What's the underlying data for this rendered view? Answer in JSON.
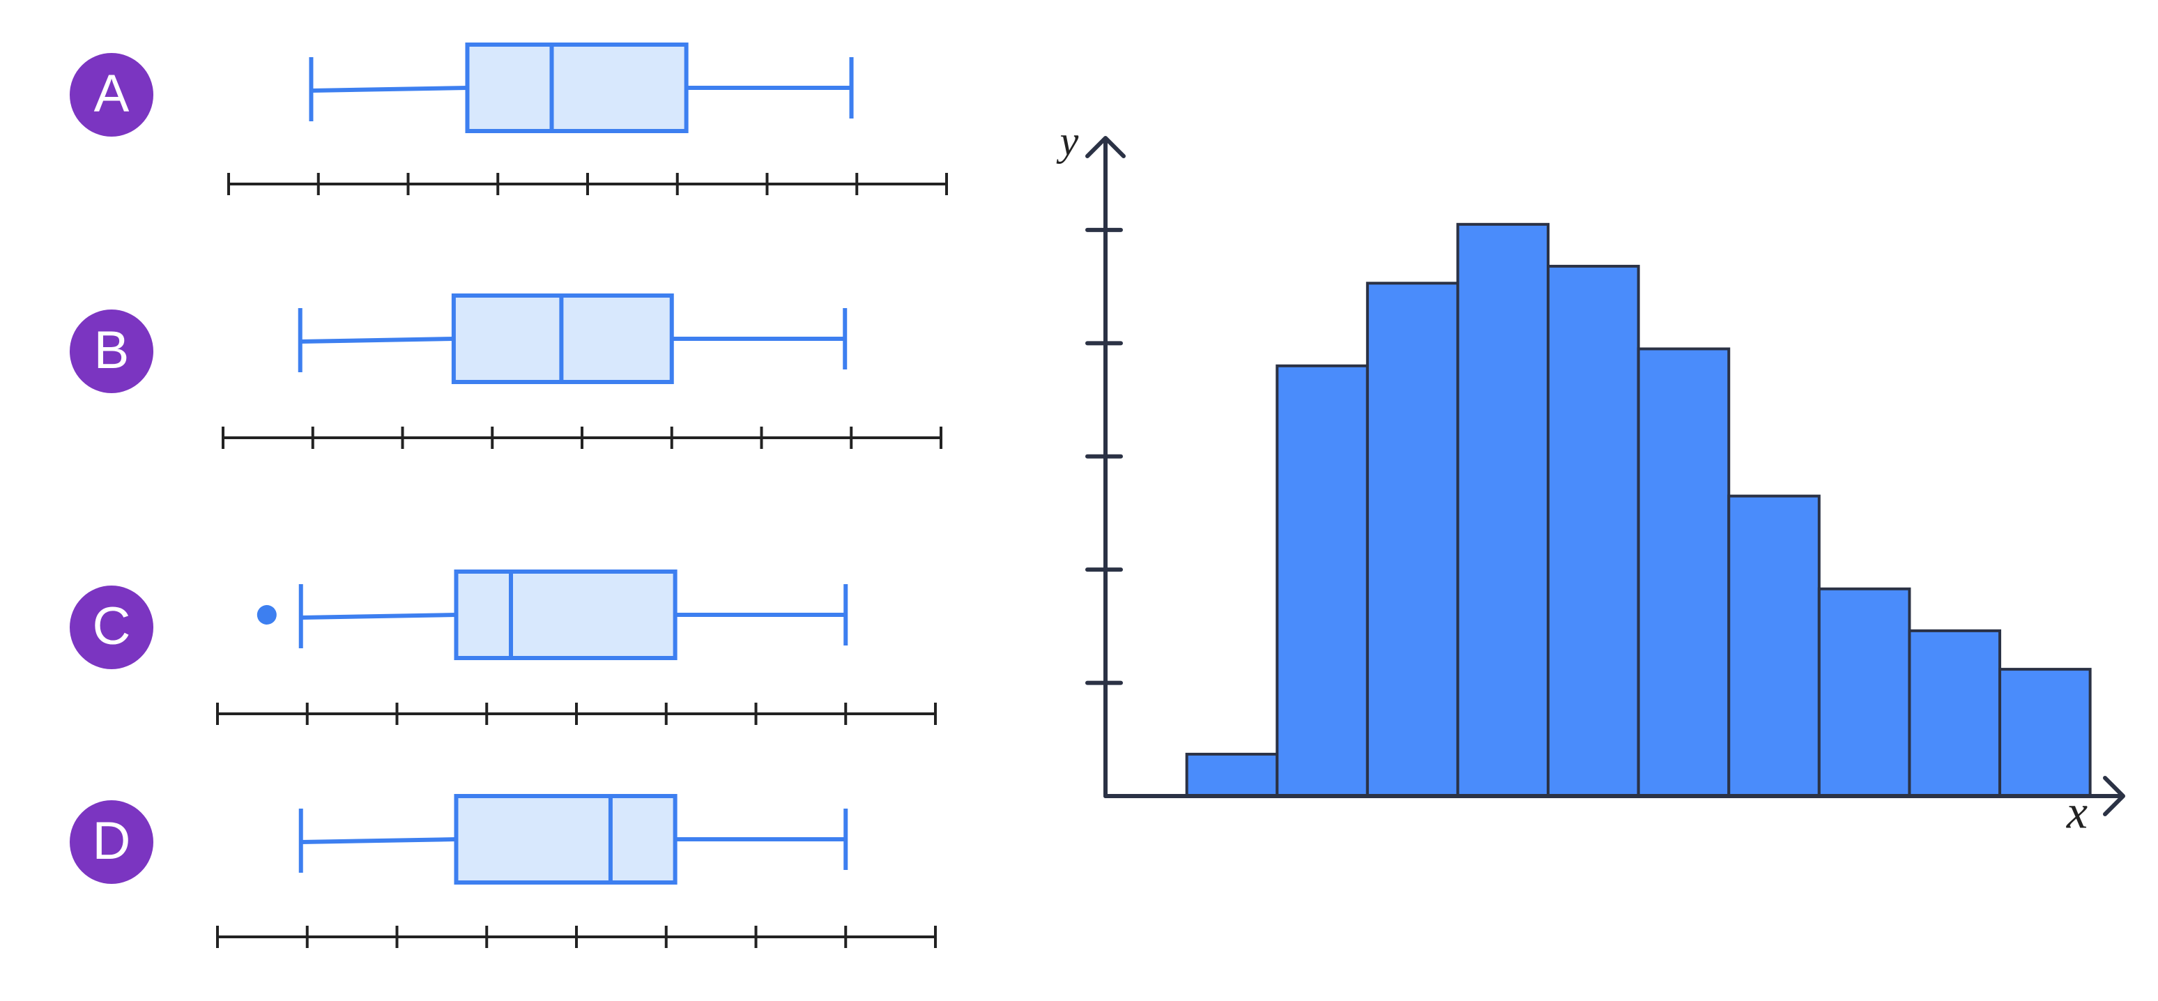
{
  "chart_data": [
    {
      "type": "box",
      "label": "A",
      "min": 0.92,
      "q1": 2.66,
      "median": 3.6,
      "q3": 5.1,
      "max": 6.94,
      "outliers": [],
      "xlim": [
        0,
        8
      ],
      "xticks": [
        0,
        1,
        2,
        3,
        4,
        5,
        6,
        7,
        8
      ],
      "color": "#3d7ff0",
      "fill": "#d8e8fd",
      "badge_color": "#7b35c1"
    },
    {
      "type": "box",
      "label": "B",
      "min": 0.86,
      "q1": 2.57,
      "median": 3.77,
      "q3": 5.0,
      "max": 6.93,
      "outliers": [],
      "xlim": [
        0,
        8
      ],
      "xticks": [
        0,
        1,
        2,
        3,
        4,
        5,
        6,
        7,
        8
      ],
      "color": "#3d7ff0",
      "fill": "#d8e8fd",
      "badge_color": "#7b35c1"
    },
    {
      "type": "box",
      "label": "C",
      "min": 0.93,
      "q1": 2.66,
      "median": 3.27,
      "q3": 5.1,
      "max": 7.0,
      "outliers": [
        0.55
      ],
      "xlim": [
        0,
        8
      ],
      "xticks": [
        0,
        1,
        2,
        3,
        4,
        5,
        6,
        7,
        8
      ],
      "color": "#3d7ff0",
      "fill": "#d8e8fd",
      "badge_color": "#7b35c1"
    },
    {
      "type": "box",
      "label": "D",
      "min": 0.93,
      "q1": 2.66,
      "median": 4.38,
      "q3": 5.1,
      "max": 7.0,
      "outliers": [],
      "xlim": [
        0,
        8
      ],
      "xticks": [
        0,
        1,
        2,
        3,
        4,
        5,
        6,
        7,
        8
      ],
      "color": "#3d7ff0",
      "fill": "#d8e8fd",
      "badge_color": "#7b35c1"
    },
    {
      "type": "histogram",
      "x_label": "x",
      "y_label": "y",
      "bins": [
        0.9,
        1.9,
        2.9,
        3.9,
        4.9,
        5.9,
        6.9,
        7.9,
        8.9,
        9.9,
        10.9
      ],
      "values": [
        0.37,
        3.8,
        4.53,
        5.05,
        4.68,
        3.95,
        2.65,
        1.83,
        1.46,
        1.12
      ],
      "xlim": [
        0,
        11.25
      ],
      "ylim": [
        0,
        5.8
      ],
      "yticks": [
        1,
        2,
        3,
        4,
        5
      ],
      "color": "#4a8cfb",
      "edge_color": "#2b3245"
    }
  ]
}
